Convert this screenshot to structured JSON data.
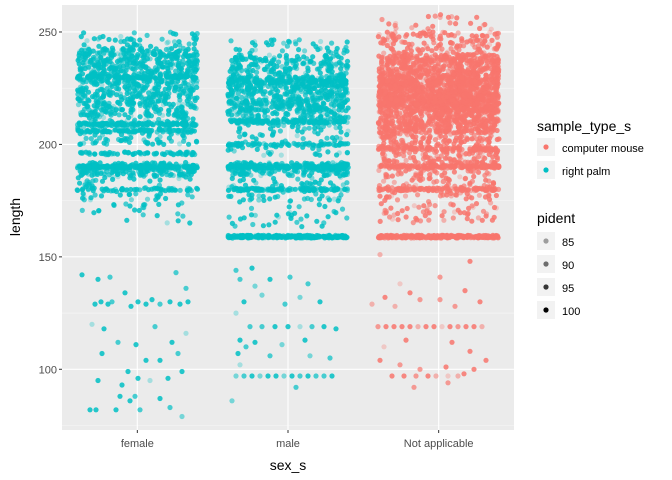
{
  "chart_data": {
    "type": "scatter",
    "jitter": true,
    "xlabel": "sex_s",
    "ylabel": "length",
    "categories": [
      "female",
      "male",
      "Not applicable"
    ],
    "yticks": [
      100,
      150,
      200,
      250
    ],
    "ylim": [
      73,
      262
    ],
    "grid": true,
    "legend_placement": "right",
    "color_legend": {
      "title": "sample_type_s",
      "entries": [
        {
          "label": "computer mouse",
          "color": "#F8766D"
        },
        {
          "label": "right palm",
          "color": "#00BFC4"
        }
      ]
    },
    "alpha_legend": {
      "title": "pident",
      "entries": [
        {
          "label": "85",
          "value": 85
        },
        {
          "label": "90",
          "value": 90
        },
        {
          "label": "95",
          "value": 95
        },
        {
          "label": "100",
          "value": 100
        }
      ]
    },
    "groups": [
      {
        "category": "female",
        "sample_type": "right palm",
        "color": "#00BFC4",
        "y_range": [
          80,
          254
        ],
        "dense_bands": [
          [
            212,
            243,
            700
          ],
          [
            225,
            250,
            150
          ],
          [
            200,
            212,
            120
          ],
          [
            186,
            192,
            160
          ],
          [
            175,
            186,
            60
          ],
          [
            165,
            175,
            25
          ]
        ],
        "lines": [
          [
            190,
            180
          ],
          [
            209,
            120
          ],
          [
            206,
            90
          ],
          [
            196,
            70
          ],
          [
            180,
            50
          ],
          [
            230,
            90
          ]
        ],
        "sparse_points": [
          [
            82,
            142
          ],
          [
            95,
            129
          ],
          [
            101,
            130
          ],
          [
            108,
            129
          ],
          [
            112,
            130
          ],
          [
            125,
            134
          ],
          [
            131,
            128
          ],
          [
            138,
            130
          ],
          [
            146,
            129
          ],
          [
            152,
            131
          ],
          [
            160,
            129
          ],
          [
            170,
            130
          ],
          [
            180,
            129
          ],
          [
            188,
            130
          ],
          [
            92,
            120
          ],
          [
            104,
            118
          ],
          [
            118,
            112
          ],
          [
            136,
            111
          ],
          [
            155,
            119
          ],
          [
            172,
            112
          ],
          [
            186,
            116
          ],
          [
            102,
            107
          ],
          [
            128,
            99
          ],
          [
            146,
            104
          ],
          [
            160,
            104
          ],
          [
            178,
            107
          ],
          [
            98,
            95
          ],
          [
            122,
            93
          ],
          [
            138,
            96
          ],
          [
            150,
            95
          ],
          [
            168,
            96
          ],
          [
            182,
            99
          ],
          [
            120,
            88
          ],
          [
            130,
            86
          ],
          [
            135,
            88
          ],
          [
            160,
            87
          ],
          [
            90,
            82
          ],
          [
            96,
            82
          ],
          [
            116,
            82
          ],
          [
            140,
            82
          ],
          [
            170,
            83
          ],
          [
            182,
            79
          ],
          [
            98,
            140
          ],
          [
            110,
            141
          ],
          [
            176,
            143
          ],
          [
            186,
            136
          ]
        ]
      },
      {
        "category": "male",
        "sample_type": "right palm",
        "color": "#00BFC4",
        "y_range": [
          85,
          254
        ],
        "dense_bands": [
          [
            210,
            240,
            550
          ],
          [
            215,
            230,
            250
          ],
          [
            195,
            212,
            110
          ],
          [
            186,
            192,
            170
          ],
          [
            175,
            186,
            70
          ],
          [
            163,
            175,
            40
          ],
          [
            240,
            247,
            40
          ]
        ],
        "lines": [
          [
            159,
            240
          ],
          [
            190,
            140
          ],
          [
            180,
            110
          ],
          [
            210,
            100
          ],
          [
            200,
            70
          ],
          [
            228,
            80
          ]
        ],
        "sparse_points": [
          [
            240,
            140
          ],
          [
            255,
            137
          ],
          [
            270,
            140
          ],
          [
            290,
            141
          ],
          [
            308,
            138
          ],
          [
            244,
            130
          ],
          [
            262,
            133
          ],
          [
            285,
            129
          ],
          [
            300,
            132
          ],
          [
            320,
            130
          ],
          [
            236,
            125
          ],
          [
            250,
            119
          ],
          [
            262,
            119
          ],
          [
            275,
            119
          ],
          [
            288,
            119
          ],
          [
            300,
            119
          ],
          [
            312,
            119
          ],
          [
            324,
            119
          ],
          [
            336,
            118
          ],
          [
            240,
            113
          ],
          [
            255,
            112
          ],
          [
            282,
            111
          ],
          [
            305,
            113
          ],
          [
            238,
            107
          ],
          [
            246,
            110
          ],
          [
            270,
            106
          ],
          [
            310,
            106
          ],
          [
            330,
            105
          ],
          [
            236,
            97
          ],
          [
            244,
            97
          ],
          [
            252,
            97
          ],
          [
            260,
            97
          ],
          [
            268,
            97
          ],
          [
            276,
            97
          ],
          [
            284,
            97
          ],
          [
            292,
            97
          ],
          [
            300,
            97
          ],
          [
            308,
            97
          ],
          [
            316,
            97
          ],
          [
            324,
            97
          ],
          [
            332,
            97
          ],
          [
            240,
            102
          ],
          [
            296,
            92
          ],
          [
            232,
            86
          ],
          [
            236,
            144
          ],
          [
            252,
            145
          ]
        ]
      },
      {
        "category": "Not applicable",
        "sample_type": "computer mouse",
        "color": "#F8766D",
        "y_range": [
          92,
          262
        ],
        "dense_bands": [
          [
            205,
            240,
            1600
          ],
          [
            215,
            230,
            400
          ],
          [
            240,
            250,
            140
          ],
          [
            190,
            205,
            280
          ],
          [
            175,
            190,
            140
          ],
          [
            165,
            175,
            60
          ],
          [
            250,
            258,
            25
          ]
        ],
        "lines": [
          [
            159,
            260
          ],
          [
            190,
            140
          ],
          [
            180,
            100
          ],
          [
            198,
            90
          ]
        ],
        "sparse_points": [
          [
            380,
            151
          ],
          [
            470,
            148
          ],
          [
            440,
            141
          ],
          [
            400,
            138
          ],
          [
            385,
            132
          ],
          [
            410,
            134
          ],
          [
            440,
            131
          ],
          [
            465,
            135
          ],
          [
            372,
            129
          ],
          [
            395,
            128
          ],
          [
            420,
            131
          ],
          [
            455,
            128
          ],
          [
            480,
            130
          ],
          [
            378,
            119
          ],
          [
            386,
            119
          ],
          [
            394,
            119
          ],
          [
            402,
            119
          ],
          [
            410,
            119
          ],
          [
            418,
            119
          ],
          [
            426,
            119
          ],
          [
            434,
            119
          ],
          [
            442,
            119
          ],
          [
            450,
            119
          ],
          [
            458,
            119
          ],
          [
            466,
            119
          ],
          [
            474,
            119
          ],
          [
            482,
            119
          ],
          [
            384,
            110
          ],
          [
            406,
            113
          ],
          [
            452,
            112
          ],
          [
            470,
            108
          ],
          [
            380,
            104
          ],
          [
            400,
            102
          ],
          [
            420,
            100
          ],
          [
            446,
            101
          ],
          [
            464,
            98
          ],
          [
            392,
            97
          ],
          [
            404,
            97
          ],
          [
            416,
            97
          ],
          [
            428,
            97
          ],
          [
            436,
            97
          ],
          [
            448,
            97
          ],
          [
            458,
            97
          ],
          [
            414,
            92
          ],
          [
            448,
            94
          ],
          [
            474,
            100
          ],
          [
            486,
            104
          ]
        ]
      }
    ]
  }
}
